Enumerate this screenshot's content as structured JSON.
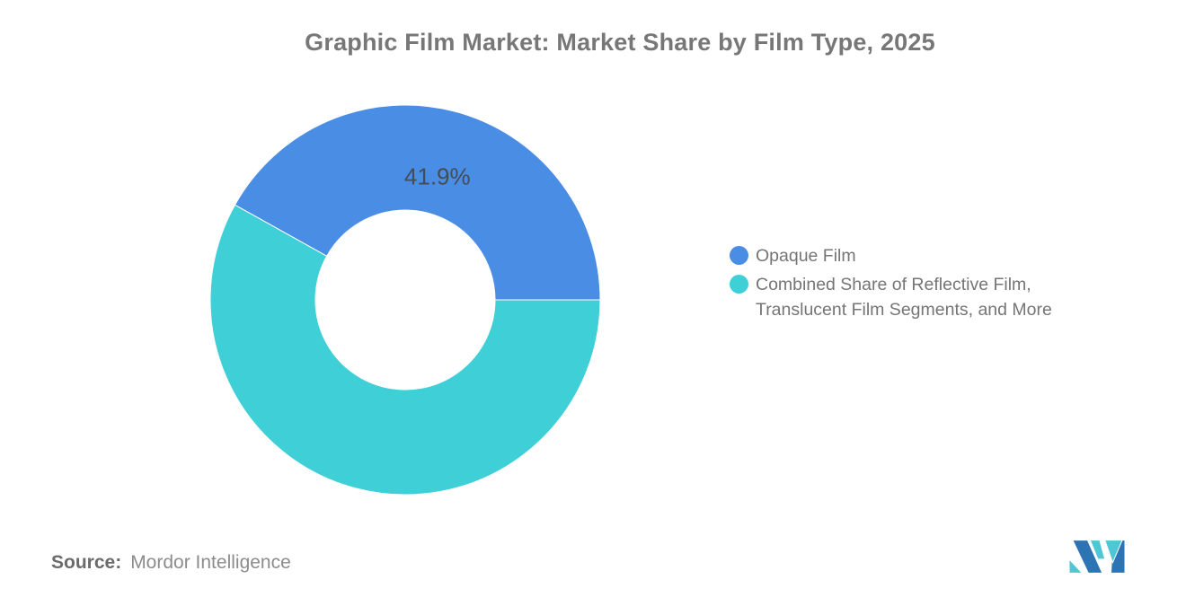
{
  "page": {
    "background": "#ffffff"
  },
  "title": {
    "text": "Graphic Film Market: Market Share by Film Type, 2025"
  },
  "chart_data": {
    "type": "pie",
    "subtype": "donut",
    "title": "Graphic Film Market: Market Share by Film Type, 2025",
    "units": "percent",
    "series": [
      {
        "name": "Opaque Film",
        "value": 41.9,
        "color": "#4A8DE4",
        "data_label": "41.9%"
      },
      {
        "name": "Combined Share of Reflective Film, Translucent Film Segments, and More",
        "value": 58.1,
        "color": "#3FCFD7",
        "data_label": ""
      }
    ],
    "start_angle_deg": -150.84,
    "inner_radius_ratio": 0.46,
    "legend_position": "right",
    "data_label_color": "#424D58",
    "grid": false
  },
  "legend": {
    "items": [
      {
        "label_lines": [
          "Opaque Film",
          ""
        ],
        "color": "#4A8DE4"
      },
      {
        "label_lines": [
          "Combined Share of Reflective Film,",
          "Translucent Film Segments, and More"
        ],
        "color": "#3FCFD7"
      }
    ]
  },
  "footer": {
    "source_label": "Source:",
    "source_value": "Mordor Intelligence",
    "logo_icon": "mordor-intelligence-logo",
    "logo_colors": {
      "navy": "#2D74B4",
      "teal": "#4FC6D3"
    }
  }
}
